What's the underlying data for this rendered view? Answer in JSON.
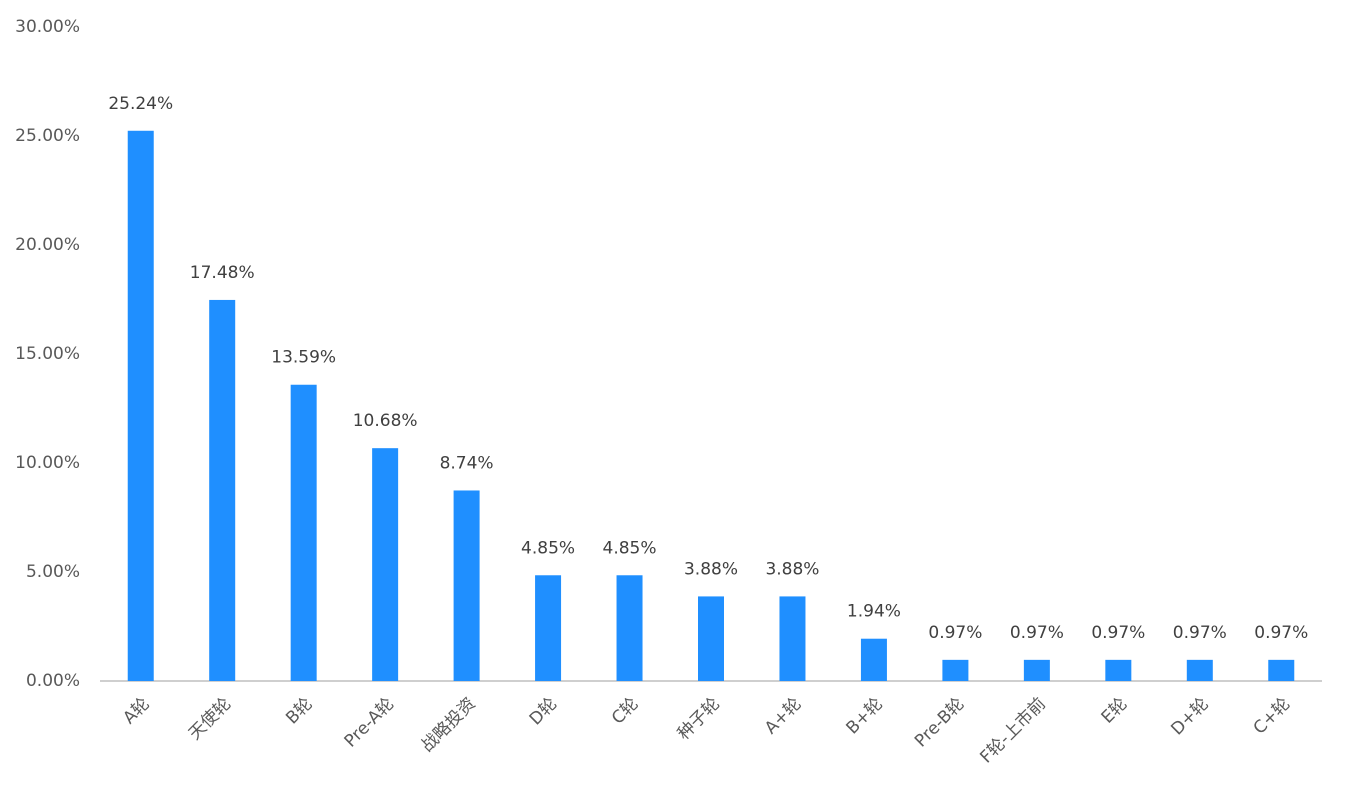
{
  "chart_data": {
    "type": "bar",
    "categories": [
      "A轮",
      "天使轮",
      "B轮",
      "Pre-A轮",
      "战略投资",
      "D轮",
      "C轮",
      "种子轮",
      "A+轮",
      "B+轮",
      "Pre-B轮",
      "F轮-上市前",
      "E轮",
      "D+轮",
      "C+轮"
    ],
    "values": [
      25.24,
      17.48,
      13.59,
      10.68,
      8.74,
      4.85,
      4.85,
      3.88,
      3.88,
      1.94,
      0.97,
      0.97,
      0.97,
      0.97,
      0.97
    ],
    "value_labels": [
      "25.24%",
      "17.48%",
      "13.59%",
      "10.68%",
      "8.74%",
      "4.85%",
      "4.85%",
      "3.88%",
      "3.88%",
      "1.94%",
      "0.97%",
      "0.97%",
      "0.97%",
      "0.97%",
      "0.97%"
    ],
    "color": "#1f8fff",
    "ylim": [
      0,
      30
    ],
    "yticks": [
      {
        "value": 0,
        "label": "0.00%"
      },
      {
        "value": 5,
        "label": "5.00%"
      },
      {
        "value": 10,
        "label": "10.00%"
      },
      {
        "value": 15,
        "label": "15.00%"
      },
      {
        "value": 20,
        "label": "20.00%"
      },
      {
        "value": 25,
        "label": "25.00%"
      },
      {
        "value": 30,
        "label": "30.00%"
      }
    ],
    "grid": false
  }
}
